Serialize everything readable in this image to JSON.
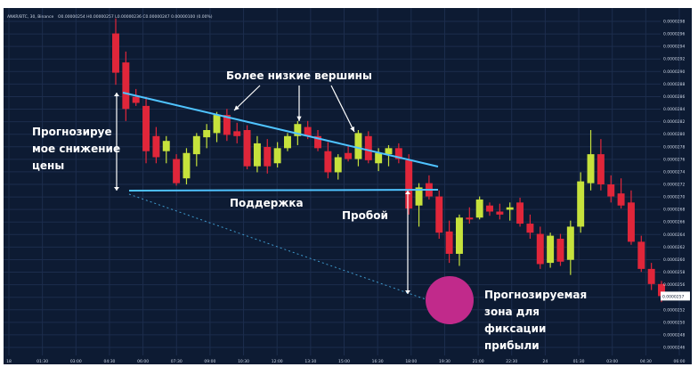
{
  "header": {
    "symbol": "ANKR/BTC, 30, Binance",
    "ohlc": "O0.00000254 H0.00000257 L0.00000236 C0.00000247 0.00000100 (0.00%)"
  },
  "colors": {
    "background": "#0d1b33",
    "grid": "#1c2d4d",
    "up": "#c6e23c",
    "down": "#e0263a",
    "trendline": "#4fc3ff",
    "target_zone": "#c12a8b",
    "annotation": "#ffffff",
    "price_tag": "#ffffff"
  },
  "annotations": {
    "lower_highs": "Более низкие вершины",
    "predict_drop": [
      "Прогнозируе",
      "мое снижение",
      "цены"
    ],
    "support": "Поддержка",
    "breakout": "Пробой",
    "target_zone": [
      "Прогнозируемая",
      "зона для",
      "фиксации",
      "прибыли"
    ]
  },
  "chart_data": {
    "type": "candlestick",
    "title": "",
    "xlabel": "",
    "ylabel": "",
    "ylim": [
      2.44e-05,
      2.98e-05
    ],
    "grid": true,
    "price_axis_labels": [
      "0.0000298",
      "0.0000296",
      "0.0000294",
      "0.0000292",
      "0.0000290",
      "0.0000288",
      "0.0000286",
      "0.0000284",
      "0.0000282",
      "0.0000280",
      "0.0000278",
      "0.0000276",
      "0.0000274",
      "0.0000272",
      "0.0000270",
      "0.0000268",
      "0.0000266",
      "0.0000264",
      "0.0000262",
      "0.0000260",
      "0.0000258",
      "0.0000256",
      "0.0000254",
      "0.0000252",
      "0.0000250",
      "0.0000248",
      "0.0000246"
    ],
    "current_price_label": "0.0000257",
    "time_axis_labels": [
      "18",
      "01:30",
      "03:00",
      "04:30",
      "06:00",
      "07:30",
      "09:00",
      "10:30",
      "12:00",
      "13:30",
      "15:00",
      "16:30",
      "18:00",
      "19:30",
      "21:00",
      "22:30",
      "24",
      "01:30",
      "03:00",
      "04:30",
      "06:00"
    ],
    "candles": [
      {
        "o": 2.96e-05,
        "h": 2.985e-05,
        "l": 2.875e-05,
        "c": 2.895e-05
      },
      {
        "o": 2.912e-05,
        "h": 2.93e-05,
        "l": 2.815e-05,
        "c": 2.835e-05
      },
      {
        "o": 2.855e-05,
        "h": 2.868e-05,
        "l": 2.84e-05,
        "c": 2.845e-05
      },
      {
        "o": 2.84e-05,
        "h": 2.855e-05,
        "l": 2.745e-05,
        "c": 2.765e-05
      },
      {
        "o": 2.79e-05,
        "h": 2.805e-05,
        "l": 2.745e-05,
        "c": 2.755e-05
      },
      {
        "o": 2.765e-05,
        "h": 2.79e-05,
        "l": 2.745e-05,
        "c": 2.782e-05
      },
      {
        "o": 2.752e-05,
        "h": 2.76e-05,
        "l": 2.708e-05,
        "c": 2.712e-05
      },
      {
        "o": 2.72e-05,
        "h": 2.77e-05,
        "l": 2.71e-05,
        "c": 2.762e-05
      },
      {
        "o": 2.76e-05,
        "h": 2.795e-05,
        "l": 2.74e-05,
        "c": 2.79e-05
      },
      {
        "o": 2.788e-05,
        "h": 2.81e-05,
        "l": 2.77e-05,
        "c": 2.8e-05
      },
      {
        "o": 2.795e-05,
        "h": 2.83e-05,
        "l": 2.78e-05,
        "c": 2.825e-05
      },
      {
        "o": 2.825e-05,
        "h": 2.835e-05,
        "l": 2.782e-05,
        "c": 2.792e-05
      },
      {
        "o": 2.798e-05,
        "h": 2.812e-05,
        "l": 2.778e-05,
        "c": 2.79e-05
      },
      {
        "o": 2.8e-05,
        "h": 2.808e-05,
        "l": 2.735e-05,
        "c": 2.74e-05
      },
      {
        "o": 2.74e-05,
        "h": 2.79e-05,
        "l": 2.73e-05,
        "c": 2.778e-05
      },
      {
        "o": 2.772e-05,
        "h": 2.785e-05,
        "l": 2.728e-05,
        "c": 2.74e-05
      },
      {
        "o": 2.745e-05,
        "h": 2.78e-05,
        "l": 2.738e-05,
        "c": 2.77e-05
      },
      {
        "o": 2.77e-05,
        "h": 2.795e-05,
        "l": 2.765e-05,
        "c": 2.79e-05
      },
      {
        "o": 2.79e-05,
        "h": 2.815e-05,
        "l": 2.775e-05,
        "c": 2.81e-05
      },
      {
        "o": 2.805e-05,
        "h": 2.815e-05,
        "l": 2.785e-05,
        "c": 2.79e-05
      },
      {
        "o": 2.79e-05,
        "h": 2.8e-05,
        "l": 2.765e-05,
        "c": 2.77e-05
      },
      {
        "o": 2.765e-05,
        "h": 2.78e-05,
        "l": 2.72e-05,
        "c": 2.73e-05
      },
      {
        "o": 2.73e-05,
        "h": 2.76e-05,
        "l": 2.718e-05,
        "c": 2.755e-05
      },
      {
        "o": 2.762e-05,
        "h": 2.775e-05,
        "l": 2.748e-05,
        "c": 2.752e-05
      },
      {
        "o": 2.752e-05,
        "h": 2.8e-05,
        "l": 2.74e-05,
        "c": 2.795e-05
      },
      {
        "o": 2.79e-05,
        "h": 2.798e-05,
        "l": 2.745e-05,
        "c": 2.75e-05
      },
      {
        "o": 2.745e-05,
        "h": 2.77e-05,
        "l": 2.732e-05,
        "c": 2.762e-05
      },
      {
        "o": 2.76e-05,
        "h": 2.775e-05,
        "l": 2.74e-05,
        "c": 2.77e-05
      },
      {
        "o": 2.77e-05,
        "h": 2.778e-05,
        "l": 2.745e-05,
        "c": 2.752e-05
      },
      {
        "o": 2.75e-05,
        "h": 2.76e-05,
        "l": 2.66e-05,
        "c": 2.67e-05
      },
      {
        "o": 2.675e-05,
        "h": 2.712e-05,
        "l": 2.64e-05,
        "c": 2.705e-05
      },
      {
        "o": 2.712e-05,
        "h": 2.725e-05,
        "l": 2.685e-05,
        "c": 2.69e-05
      },
      {
        "o": 2.69e-05,
        "h": 2.7e-05,
        "l": 2.62e-05,
        "c": 2.63e-05
      },
      {
        "o": 2.632e-05,
        "h": 2.65e-05,
        "l": 2.58e-05,
        "c": 2.595e-05
      },
      {
        "o": 2.595e-05,
        "h": 2.66e-05,
        "l": 2.575e-05,
        "c": 2.655e-05
      },
      {
        "o": 2.655e-05,
        "h": 2.672e-05,
        "l": 2.645e-05,
        "c": 2.652e-05
      },
      {
        "o": 2.655e-05,
        "h": 2.69e-05,
        "l": 2.652e-05,
        "c": 2.685e-05
      },
      {
        "o": 2.675e-05,
        "h": 2.68e-05,
        "l": 2.658e-05,
        "c": 2.665e-05
      },
      {
        "o": 2.665e-05,
        "h": 2.678e-05,
        "l": 2.652e-05,
        "c": 2.66e-05
      },
      {
        "o": 2.668e-05,
        "h": 2.68e-05,
        "l": 2.65e-05,
        "c": 2.672e-05
      },
      {
        "o": 2.68e-05,
        "h": 2.688e-05,
        "l": 2.64e-05,
        "c": 2.645e-05
      },
      {
        "o": 2.645e-05,
        "h": 2.66e-05,
        "l": 2.62e-05,
        "c": 2.63e-05
      },
      {
        "o": 2.628e-05,
        "h": 2.64e-05,
        "l": 2.57e-05,
        "c": 2.578e-05
      },
      {
        "o": 2.58e-05,
        "h": 2.63e-05,
        "l": 2.572e-05,
        "c": 2.625e-05
      },
      {
        "o": 2.62e-05,
        "h": 2.628e-05,
        "l": 2.575e-05,
        "c": 2.582e-05
      },
      {
        "o": 2.585e-05,
        "h": 2.65e-05,
        "l": 2.56e-05,
        "c": 2.64e-05
      },
      {
        "o": 2.64e-05,
        "h": 2.73e-05,
        "l": 2.63e-05,
        "c": 2.715e-05
      },
      {
        "o": 2.712e-05,
        "h": 2.8e-05,
        "l": 2.7e-05,
        "c": 2.76e-05
      },
      {
        "o": 2.76e-05,
        "h": 2.785e-05,
        "l": 2.7e-05,
        "c": 2.71e-05
      },
      {
        "o": 2.71e-05,
        "h": 2.725e-05,
        "l": 2.68e-05,
        "c": 2.69e-05
      },
      {
        "o": 2.695e-05,
        "h": 2.72e-05,
        "l": 2.67e-05,
        "c": 2.675e-05
      },
      {
        "o": 2.68e-05,
        "h": 2.7e-05,
        "l": 2.61e-05,
        "c": 2.615e-05
      },
      {
        "o": 2.615e-05,
        "h": 2.625e-05,
        "l": 2.565e-05,
        "c": 2.57e-05
      },
      {
        "o": 2.57e-05,
        "h": 2.58e-05,
        "l": 2.535e-05,
        "c": 2.545e-05
      },
      {
        "o": 2.545e-05,
        "h": 2.55e-05,
        "l": 2.515e-05,
        "c": 2.525e-05
      }
    ]
  }
}
